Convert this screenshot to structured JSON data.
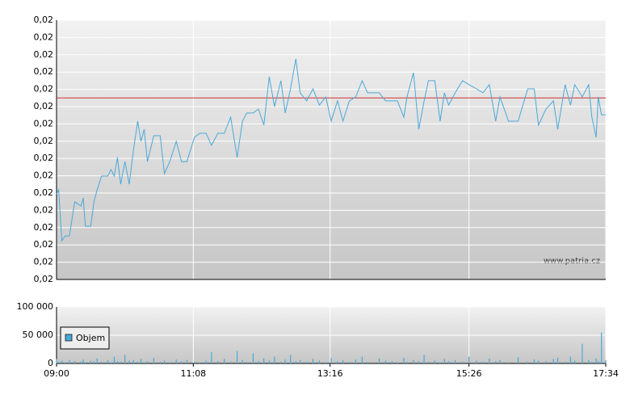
{
  "chart_data": [
    {
      "type": "line",
      "watermark": "www.patria.cz",
      "color": "#4aa8d8",
      "grid": true,
      "reference_line": 0.02105,
      "reference_color": "#cc3333",
      "xlim": [
        "09:00",
        "17:34"
      ],
      "ylim": [
        0.02,
        0.0215
      ],
      "yticks": [
        {
          "value": 0.02,
          "label": "0,02"
        },
        {
          "value": 0.0201,
          "label": "0,02"
        },
        {
          "value": 0.0202,
          "label": "0,02"
        },
        {
          "value": 0.0203,
          "label": "0,02"
        },
        {
          "value": 0.0204,
          "label": "0,02"
        },
        {
          "value": 0.0205,
          "label": "0,02"
        },
        {
          "value": 0.0206,
          "label": "0,02"
        },
        {
          "value": 0.0207,
          "label": "0,02"
        },
        {
          "value": 0.0208,
          "label": "0,02"
        },
        {
          "value": 0.0209,
          "label": "0,02"
        },
        {
          "value": 0.021,
          "label": "0,02"
        },
        {
          "value": 0.0211,
          "label": "0,02"
        },
        {
          "value": 0.0212,
          "label": "0,02"
        },
        {
          "value": 0.0213,
          "label": "0,02"
        },
        {
          "value": 0.0214,
          "label": "0,02"
        },
        {
          "value": 0.0215,
          "label": "0,02"
        }
      ],
      "x": [
        "09:00",
        "09:02",
        "09:05",
        "09:08",
        "09:12",
        "09:17",
        "09:23",
        "09:25",
        "09:27",
        "09:32",
        "09:35",
        "09:38",
        "09:42",
        "09:48",
        "09:51",
        "09:54",
        "09:57",
        "10:00",
        "10:04",
        "10:08",
        "10:12",
        "10:16",
        "10:19",
        "10:22",
        "10:25",
        "10:31",
        "10:37",
        "10:41",
        "10:46",
        "10:52",
        "10:57",
        "11:02",
        "11:09",
        "11:14",
        "11:20",
        "11:25",
        "11:31",
        "11:37",
        "11:43",
        "11:49",
        "11:54",
        "11:58",
        "12:04",
        "12:09",
        "12:14",
        "12:19",
        "12:24",
        "12:30",
        "12:34",
        "12:39",
        "12:44",
        "12:48",
        "12:54",
        "13:00",
        "13:06",
        "13:12",
        "13:17",
        "13:23",
        "13:28",
        "13:34",
        "13:40",
        "13:46",
        "13:51",
        "14:02",
        "14:08",
        "14:14",
        "14:19",
        "14:25",
        "14:28",
        "14:34",
        "14:39",
        "14:44",
        "14:48",
        "14:54",
        "14:59",
        "15:03",
        "15:07",
        "15:13",
        "15:20",
        "15:26",
        "15:33",
        "15:39",
        "15:45",
        "15:51",
        "15:55",
        "16:03",
        "16:12",
        "16:21",
        "16:27",
        "16:31",
        "16:38",
        "16:45",
        "16:49",
        "16:56",
        "17:01",
        "17:05",
        "17:12",
        "17:18",
        "17:21",
        "17:25",
        "17:27",
        "17:30",
        "17:34"
      ],
      "values": [
        0.020495,
        0.020519,
        0.020224,
        0.020252,
        0.020252,
        0.020449,
        0.020425,
        0.020472,
        0.020308,
        0.020308,
        0.020449,
        0.020519,
        0.020598,
        0.020598,
        0.020636,
        0.020598,
        0.020706,
        0.020551,
        0.020682,
        0.020551,
        0.020752,
        0.020916,
        0.020799,
        0.020869,
        0.020682,
        0.020832,
        0.020832,
        0.020612,
        0.020682,
        0.020799,
        0.020682,
        0.020682,
        0.020822,
        0.020846,
        0.020846,
        0.020776,
        0.020846,
        0.020846,
        0.020939,
        0.020706,
        0.020916,
        0.020963,
        0.020963,
        0.020986,
        0.020893,
        0.021173,
        0.021,
        0.02115,
        0.020963,
        0.021103,
        0.021276,
        0.02108,
        0.021033,
        0.021103,
        0.021009,
        0.021056,
        0.020916,
        0.021033,
        0.020916,
        0.021033,
        0.021056,
        0.02115,
        0.02108,
        0.02108,
        0.021033,
        0.021033,
        0.021033,
        0.020939,
        0.021056,
        0.021196,
        0.020869,
        0.021033,
        0.02115,
        0.02115,
        0.020916,
        0.02108,
        0.021009,
        0.02108,
        0.02115,
        0.021127,
        0.021103,
        0.02108,
        0.021127,
        0.020916,
        0.021056,
        0.020916,
        0.020916,
        0.021103,
        0.021103,
        0.020893,
        0.020986,
        0.021033,
        0.020869,
        0.021127,
        0.021009,
        0.021127,
        0.021056,
        0.021127,
        0.020939,
        0.020822,
        0.021056,
        0.020953,
        0.020953
      ]
    },
    {
      "type": "bar",
      "grid": true,
      "xlim": [
        "09:00",
        "17:34"
      ],
      "xticks": [
        "09:00",
        "11:08",
        "13:16",
        "15:26",
        "17:34"
      ],
      "ylim": [
        0,
        100000
      ],
      "yticks": [
        0,
        {
          "value": 50000,
          "label": "50 000"
        },
        {
          "value": 100000,
          "label": "100 000"
        }
      ],
      "x": [
        "09:00",
        "09:02",
        "09:05",
        "09:08",
        "09:12",
        "09:17",
        "09:23",
        "09:25",
        "09:27",
        "09:32",
        "09:35",
        "09:38",
        "09:42",
        "09:48",
        "09:51",
        "09:54",
        "09:57",
        "10:00",
        "10:04",
        "10:08",
        "10:12",
        "10:16",
        "10:19",
        "10:22",
        "10:25",
        "10:31",
        "10:37",
        "10:41",
        "10:46",
        "10:52",
        "10:57",
        "11:02",
        "11:09",
        "11:14",
        "11:20",
        "11:25",
        "11:31",
        "11:37",
        "11:43",
        "11:49",
        "11:54",
        "11:58",
        "12:04",
        "12:09",
        "12:14",
        "12:19",
        "12:24",
        "12:30",
        "12:34",
        "12:39",
        "12:44",
        "12:48",
        "12:54",
        "13:00",
        "13:06",
        "13:12",
        "13:17",
        "13:23",
        "13:28",
        "13:34",
        "13:40",
        "13:46",
        "13:51",
        "14:02",
        "14:08",
        "14:14",
        "14:19",
        "14:25",
        "14:28",
        "14:34",
        "14:39",
        "14:44",
        "14:48",
        "14:54",
        "14:59",
        "15:03",
        "15:07",
        "15:13",
        "15:20",
        "15:26",
        "15:33",
        "15:39",
        "15:45",
        "15:51",
        "15:55",
        "16:03",
        "16:12",
        "16:21",
        "16:27",
        "16:31",
        "16:38",
        "16:45",
        "16:49",
        "16:56",
        "17:01",
        "17:05",
        "17:12",
        "17:18",
        "17:21",
        "17:25",
        "17:27",
        "17:30",
        "17:34"
      ],
      "series": [
        {
          "name": "Objem",
          "color": "#4aa8d8",
          "values": [
            8000,
            3000,
            5000,
            2000,
            6000,
            4000,
            3000,
            7000,
            2000,
            5000,
            4000,
            9000,
            3000,
            6000,
            2000,
            12000,
            4000,
            3000,
            15000,
            5000,
            6000,
            3000,
            8000,
            2000,
            4000,
            10000,
            3000,
            5000,
            2000,
            7000,
            4000,
            6000,
            3000,
            2000,
            5000,
            20000,
            4000,
            8000,
            3000,
            22000,
            6000,
            3000,
            18000,
            4000,
            9000,
            5000,
            12000,
            3000,
            7000,
            15000,
            4000,
            6000,
            3000,
            8000,
            5000,
            2000,
            10000,
            4000,
            6000,
            3000,
            7000,
            12000,
            3000,
            9000,
            5000,
            4000,
            2000,
            10000,
            3000,
            6000,
            4000,
            15000,
            3000,
            5000,
            2000,
            8000,
            4000,
            6000,
            3000,
            12000,
            5000,
            3000,
            9000,
            4000,
            6000,
            2000,
            11000,
            3000,
            7000,
            5000,
            4000,
            8000,
            10000,
            3000,
            12000,
            5000,
            35000,
            6000,
            3000,
            9000,
            4000,
            55000,
            6000
          ]
        }
      ]
    }
  ]
}
